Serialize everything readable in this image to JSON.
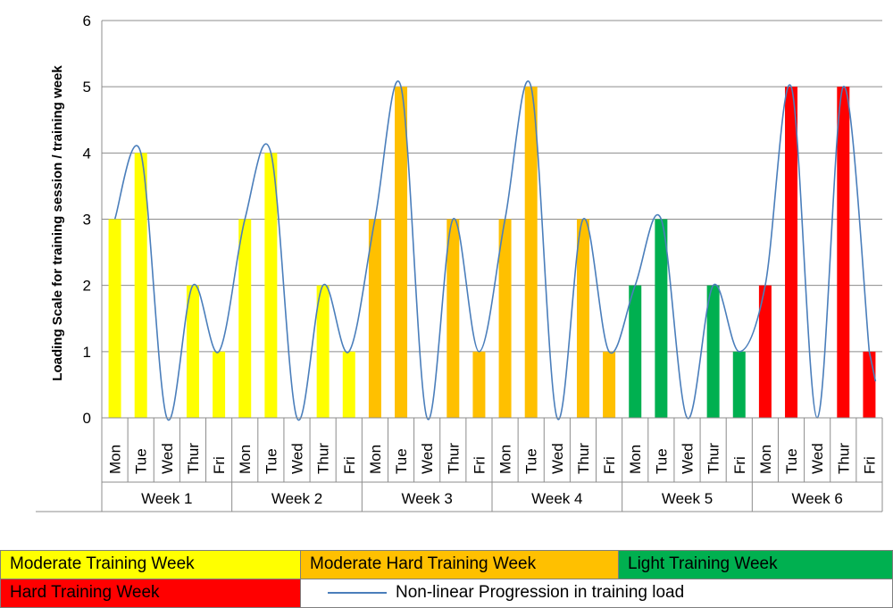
{
  "chart_data": {
    "type": "bar",
    "ylabel": "Loading Scale for training session / training week",
    "xlabel": "",
    "ylim": [
      0,
      6
    ],
    "yticks": [
      0,
      1,
      2,
      3,
      4,
      5,
      6
    ],
    "grid": true,
    "groups": [
      "Week 1",
      "Week 2",
      "Week 3",
      "Week 4",
      "Week 5",
      "Week 6"
    ],
    "days": [
      "Mon",
      "Tue",
      "Wed",
      "Thur",
      "Fri"
    ],
    "values": [
      [
        3,
        4,
        0,
        2,
        1
      ],
      [
        3,
        4,
        0,
        2,
        1
      ],
      [
        3,
        5,
        0,
        3,
        1
      ],
      [
        3,
        5,
        0,
        3,
        1
      ],
      [
        2,
        3,
        0,
        2,
        1
      ],
      [
        2,
        5,
        0,
        5,
        1
      ]
    ],
    "week_colors": [
      "#ffff00",
      "#ffff00",
      "#ffc000",
      "#ffc000",
      "#00b050",
      "#ff0000"
    ],
    "line_color": "#4a7ebb",
    "legend_placement": "bottom"
  },
  "legend": {
    "items": [
      {
        "label": "Moderate Training Week",
        "color": "#ffff00"
      },
      {
        "label": "Moderate Hard Training Week",
        "color": "#ffc000"
      },
      {
        "label": "Light Training Week",
        "color": "#00b050"
      },
      {
        "label": "Hard Training Week",
        "color": "#ff0000"
      }
    ],
    "line_label": "Non-linear Progression in training load"
  }
}
